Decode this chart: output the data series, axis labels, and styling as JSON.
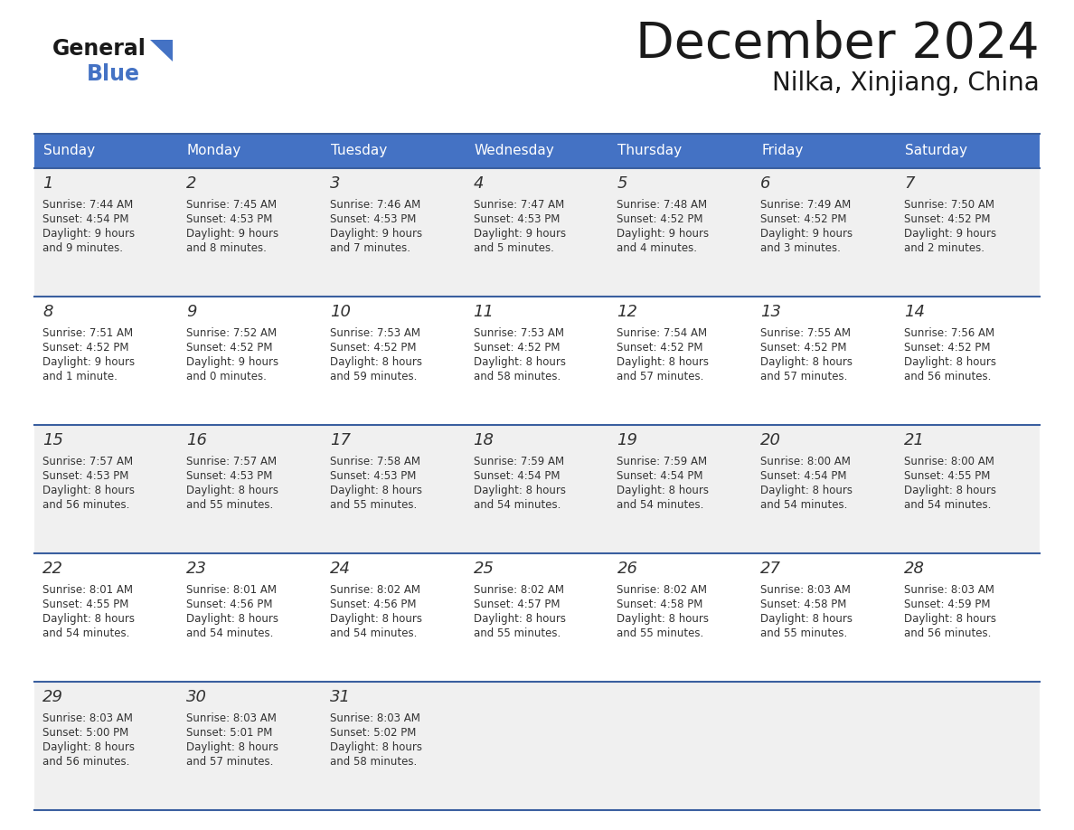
{
  "title": "December 2024",
  "subtitle": "Nilka, Xinjiang, China",
  "header_color": "#4472C4",
  "header_text_color": "#FFFFFF",
  "day_names": [
    "Sunday",
    "Monday",
    "Tuesday",
    "Wednesday",
    "Thursday",
    "Friday",
    "Saturday"
  ],
  "background_color": "#FFFFFF",
  "row_color_odd": "#F0F0F0",
  "row_color_even": "#FFFFFF",
  "separator_color": "#3A5F9F",
  "text_color": "#333333",
  "days": [
    {
      "day": 1,
      "col": 0,
      "row": 0,
      "sunrise": "7:44 AM",
      "sunset": "4:54 PM",
      "daylight_hours": 9,
      "daylight_minutes": 9
    },
    {
      "day": 2,
      "col": 1,
      "row": 0,
      "sunrise": "7:45 AM",
      "sunset": "4:53 PM",
      "daylight_hours": 9,
      "daylight_minutes": 8
    },
    {
      "day": 3,
      "col": 2,
      "row": 0,
      "sunrise": "7:46 AM",
      "sunset": "4:53 PM",
      "daylight_hours": 9,
      "daylight_minutes": 7
    },
    {
      "day": 4,
      "col": 3,
      "row": 0,
      "sunrise": "7:47 AM",
      "sunset": "4:53 PM",
      "daylight_hours": 9,
      "daylight_minutes": 5
    },
    {
      "day": 5,
      "col": 4,
      "row": 0,
      "sunrise": "7:48 AM",
      "sunset": "4:52 PM",
      "daylight_hours": 9,
      "daylight_minutes": 4
    },
    {
      "day": 6,
      "col": 5,
      "row": 0,
      "sunrise": "7:49 AM",
      "sunset": "4:52 PM",
      "daylight_hours": 9,
      "daylight_minutes": 3
    },
    {
      "day": 7,
      "col": 6,
      "row": 0,
      "sunrise": "7:50 AM",
      "sunset": "4:52 PM",
      "daylight_hours": 9,
      "daylight_minutes": 2
    },
    {
      "day": 8,
      "col": 0,
      "row": 1,
      "sunrise": "7:51 AM",
      "sunset": "4:52 PM",
      "daylight_hours": 9,
      "daylight_minutes": 1
    },
    {
      "day": 9,
      "col": 1,
      "row": 1,
      "sunrise": "7:52 AM",
      "sunset": "4:52 PM",
      "daylight_hours": 9,
      "daylight_minutes": 0
    },
    {
      "day": 10,
      "col": 2,
      "row": 1,
      "sunrise": "7:53 AM",
      "sunset": "4:52 PM",
      "daylight_hours": 8,
      "daylight_minutes": 59
    },
    {
      "day": 11,
      "col": 3,
      "row": 1,
      "sunrise": "7:53 AM",
      "sunset": "4:52 PM",
      "daylight_hours": 8,
      "daylight_minutes": 58
    },
    {
      "day": 12,
      "col": 4,
      "row": 1,
      "sunrise": "7:54 AM",
      "sunset": "4:52 PM",
      "daylight_hours": 8,
      "daylight_minutes": 57
    },
    {
      "day": 13,
      "col": 5,
      "row": 1,
      "sunrise": "7:55 AM",
      "sunset": "4:52 PM",
      "daylight_hours": 8,
      "daylight_minutes": 57
    },
    {
      "day": 14,
      "col": 6,
      "row": 1,
      "sunrise": "7:56 AM",
      "sunset": "4:52 PM",
      "daylight_hours": 8,
      "daylight_minutes": 56
    },
    {
      "day": 15,
      "col": 0,
      "row": 2,
      "sunrise": "7:57 AM",
      "sunset": "4:53 PM",
      "daylight_hours": 8,
      "daylight_minutes": 56
    },
    {
      "day": 16,
      "col": 1,
      "row": 2,
      "sunrise": "7:57 AM",
      "sunset": "4:53 PM",
      "daylight_hours": 8,
      "daylight_minutes": 55
    },
    {
      "day": 17,
      "col": 2,
      "row": 2,
      "sunrise": "7:58 AM",
      "sunset": "4:53 PM",
      "daylight_hours": 8,
      "daylight_minutes": 55
    },
    {
      "day": 18,
      "col": 3,
      "row": 2,
      "sunrise": "7:59 AM",
      "sunset": "4:54 PM",
      "daylight_hours": 8,
      "daylight_minutes": 54
    },
    {
      "day": 19,
      "col": 4,
      "row": 2,
      "sunrise": "7:59 AM",
      "sunset": "4:54 PM",
      "daylight_hours": 8,
      "daylight_minutes": 54
    },
    {
      "day": 20,
      "col": 5,
      "row": 2,
      "sunrise": "8:00 AM",
      "sunset": "4:54 PM",
      "daylight_hours": 8,
      "daylight_minutes": 54
    },
    {
      "day": 21,
      "col": 6,
      "row": 2,
      "sunrise": "8:00 AM",
      "sunset": "4:55 PM",
      "daylight_hours": 8,
      "daylight_minutes": 54
    },
    {
      "day": 22,
      "col": 0,
      "row": 3,
      "sunrise": "8:01 AM",
      "sunset": "4:55 PM",
      "daylight_hours": 8,
      "daylight_minutes": 54
    },
    {
      "day": 23,
      "col": 1,
      "row": 3,
      "sunrise": "8:01 AM",
      "sunset": "4:56 PM",
      "daylight_hours": 8,
      "daylight_minutes": 54
    },
    {
      "day": 24,
      "col": 2,
      "row": 3,
      "sunrise": "8:02 AM",
      "sunset": "4:56 PM",
      "daylight_hours": 8,
      "daylight_minutes": 54
    },
    {
      "day": 25,
      "col": 3,
      "row": 3,
      "sunrise": "8:02 AM",
      "sunset": "4:57 PM",
      "daylight_hours": 8,
      "daylight_minutes": 55
    },
    {
      "day": 26,
      "col": 4,
      "row": 3,
      "sunrise": "8:02 AM",
      "sunset": "4:58 PM",
      "daylight_hours": 8,
      "daylight_minutes": 55
    },
    {
      "day": 27,
      "col": 5,
      "row": 3,
      "sunrise": "8:03 AM",
      "sunset": "4:58 PM",
      "daylight_hours": 8,
      "daylight_minutes": 55
    },
    {
      "day": 28,
      "col": 6,
      "row": 3,
      "sunrise": "8:03 AM",
      "sunset": "4:59 PM",
      "daylight_hours": 8,
      "daylight_minutes": 56
    },
    {
      "day": 29,
      "col": 0,
      "row": 4,
      "sunrise": "8:03 AM",
      "sunset": "5:00 PM",
      "daylight_hours": 8,
      "daylight_minutes": 56
    },
    {
      "day": 30,
      "col": 1,
      "row": 4,
      "sunrise": "8:03 AM",
      "sunset": "5:01 PM",
      "daylight_hours": 8,
      "daylight_minutes": 57
    },
    {
      "day": 31,
      "col": 2,
      "row": 4,
      "sunrise": "8:03 AM",
      "sunset": "5:02 PM",
      "daylight_hours": 8,
      "daylight_minutes": 58
    }
  ],
  "logo_text_general": "General",
  "logo_text_blue": "Blue",
  "logo_color_general": "#1a1a1a",
  "logo_color_blue": "#4472C4",
  "title_fontsize": 40,
  "subtitle_fontsize": 20,
  "header_fontsize": 11,
  "day_num_fontsize": 13,
  "cell_text_fontsize": 8.5
}
